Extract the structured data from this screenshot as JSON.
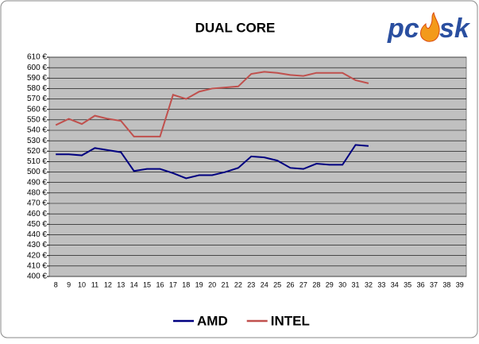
{
  "chart_data": {
    "type": "line",
    "title": "DUAL CORE",
    "logo": {
      "left": "pc",
      "right": "sk"
    },
    "categories": [
      "8",
      "9",
      "10",
      "11",
      "12",
      "13",
      "14",
      "15",
      "16",
      "17",
      "18",
      "19",
      "20",
      "21",
      "22",
      "23",
      "24",
      "25",
      "26",
      "27",
      "28",
      "29",
      "30",
      "31",
      "32",
      "33",
      "34",
      "35",
      "36",
      "37",
      "38",
      "39"
    ],
    "series": [
      {
        "name": "AMD",
        "color": "#000080",
        "values": [
          517,
          517,
          516,
          523,
          521,
          519,
          501,
          503,
          503,
          499,
          494,
          497,
          497,
          500,
          504,
          515,
          514,
          511,
          504,
          503,
          508,
          507,
          507,
          526,
          525,
          null,
          null,
          null,
          null,
          null,
          null,
          null
        ]
      },
      {
        "name": "INTEL",
        "color": "#c0504d",
        "values": [
          545,
          551,
          546,
          554,
          551,
          549,
          534,
          534,
          534,
          574,
          570,
          577,
          580,
          581,
          582,
          594,
          596,
          595,
          593,
          592,
          595,
          595,
          595,
          588,
          585,
          null,
          null,
          null,
          null,
          null,
          null,
          null
        ]
      }
    ],
    "ylim": [
      400,
      610
    ],
    "yticks": [
      {
        "value": 400,
        "label": "400 €"
      },
      {
        "value": 410,
        "label": "410 €"
      },
      {
        "value": 420,
        "label": "420 €"
      },
      {
        "value": 430,
        "label": "430 €"
      },
      {
        "value": 440,
        "label": "440 €"
      },
      {
        "value": 450,
        "label": "450 €"
      },
      {
        "value": 460,
        "label": "460 €"
      },
      {
        "value": 470,
        "label": "470 €"
      },
      {
        "value": 480,
        "label": "480 €"
      },
      {
        "value": 490,
        "label": "490 €"
      },
      {
        "value": 500,
        "label": "500 €"
      },
      {
        "value": 510,
        "label": "510 €"
      },
      {
        "value": 520,
        "label": "520 €"
      },
      {
        "value": 530,
        "label": "530 €"
      },
      {
        "value": 540,
        "label": "540 €"
      },
      {
        "value": 550,
        "label": "550 €"
      },
      {
        "value": 560,
        "label": "560 €"
      },
      {
        "value": 570,
        "label": "570 €"
      },
      {
        "value": 580,
        "label": "580 €"
      },
      {
        "value": 590,
        "label": "590 €"
      },
      {
        "value": 600,
        "label": "600 €"
      },
      {
        "value": 610,
        "label": "610 €"
      }
    ],
    "grid": true,
    "plot_color": "#c0c0c0",
    "legend": "bottom"
  }
}
